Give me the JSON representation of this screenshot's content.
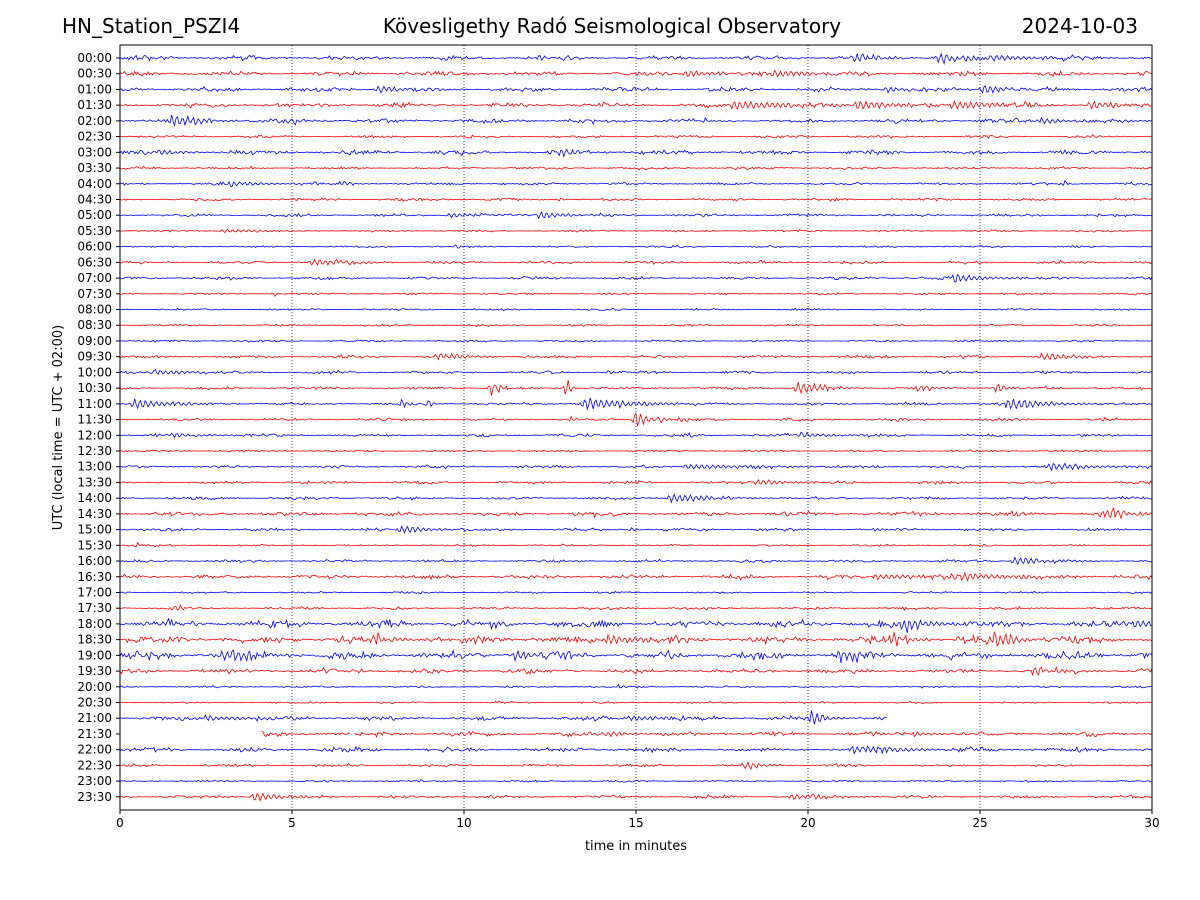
{
  "header": {
    "station": "HN_Station_PSZI4",
    "observatory": "Kövesligethy Radó Seismological Observatory",
    "date": "2024-10-03"
  },
  "chart_data": {
    "type": "line",
    "xlabel": "time in minutes",
    "ylabel": "UTC (local time = UTC + 02:00)",
    "xlim": [
      0,
      30
    ],
    "xticks": [
      0,
      5,
      10,
      15,
      20,
      25,
      30
    ],
    "grid": "vertical dotted lines at 5-minute intervals",
    "row_labels": [
      "00:00",
      "00:30",
      "01:00",
      "01:30",
      "02:00",
      "02:30",
      "03:00",
      "03:30",
      "04:00",
      "04:30",
      "05:00",
      "05:30",
      "06:00",
      "06:30",
      "07:00",
      "07:30",
      "08:00",
      "08:30",
      "09:00",
      "09:30",
      "10:00",
      "10:30",
      "11:00",
      "11:30",
      "12:00",
      "12:30",
      "13:00",
      "13:30",
      "14:00",
      "14:30",
      "15:00",
      "15:30",
      "16:00",
      "16:30",
      "17:00",
      "17:30",
      "18:00",
      "18:30",
      "19:00",
      "19:30",
      "20:00",
      "20:30",
      "21:00",
      "21:30",
      "22:00",
      "22:30",
      "23:00",
      "23:30"
    ],
    "row_colors": [
      "#0000ff",
      "#ff0000"
    ],
    "noise_level": {
      "quiet": 0.15,
      "moderate": 0.35,
      "high": 0.6,
      "quiet_rows": [
        "05:30",
        "06:00",
        "07:30",
        "08:00",
        "08:30",
        "09:00",
        "12:30",
        "15:30",
        "17:00",
        "20:00",
        "20:30",
        "23:00"
      ],
      "moderate_rows": [
        "00:00",
        "00:30",
        "01:00",
        "01:30",
        "02:00",
        "03:00",
        "14:30",
        "16:30",
        "19:30",
        "21:00",
        "21:30",
        "22:00"
      ],
      "high_rows": [
        "18:00",
        "18:30",
        "19:00"
      ]
    },
    "data_gaps": [
      {
        "row": "21:00",
        "from": 22.3,
        "to": 30
      },
      {
        "row": "21:30",
        "from": 0,
        "to": 4.1
      },
      {
        "row": "21:30",
        "from": 6.7,
        "to": 6.8
      }
    ],
    "events": [
      {
        "row": "00:00",
        "t": 21.3,
        "amp": 0.6,
        "dur": 0.8
      },
      {
        "row": "00:00",
        "t": 23.8,
        "amp": 0.7,
        "dur": 1.2
      },
      {
        "row": "00:00",
        "t": 25.3,
        "amp": 0.5,
        "dur": 1.5
      },
      {
        "row": "00:30",
        "t": 16.5,
        "amp": 0.5,
        "dur": 1.0
      },
      {
        "row": "00:30",
        "t": 19.0,
        "amp": 0.6,
        "dur": 1.2
      },
      {
        "row": "01:00",
        "t": 7.5,
        "amp": 0.6,
        "dur": 0.6
      },
      {
        "row": "01:00",
        "t": 22.3,
        "amp": 0.5,
        "dur": 0.6
      },
      {
        "row": "01:00",
        "t": 25.1,
        "amp": 0.8,
        "dur": 0.5
      },
      {
        "row": "01:30",
        "t": 17.8,
        "amp": 0.7,
        "dur": 2.0
      },
      {
        "row": "01:30",
        "t": 21.4,
        "amp": 0.8,
        "dur": 1.2
      },
      {
        "row": "01:30",
        "t": 24.2,
        "amp": 0.7,
        "dur": 1.2
      },
      {
        "row": "01:30",
        "t": 28.2,
        "amp": 0.7,
        "dur": 0.8
      },
      {
        "row": "02:00",
        "t": 1.5,
        "amp": 0.8,
        "dur": 0.8
      },
      {
        "row": "02:00",
        "t": 5.1,
        "amp": 0.4,
        "dur": 0.5
      },
      {
        "row": "02:00",
        "t": 26.8,
        "amp": 0.5,
        "dur": 0.6
      },
      {
        "row": "03:00",
        "t": 0.8,
        "amp": 0.5,
        "dur": 0.8
      },
      {
        "row": "03:00",
        "t": 12.8,
        "amp": 0.6,
        "dur": 0.6
      },
      {
        "row": "04:00",
        "t": 3.2,
        "amp": 0.4,
        "dur": 1.2
      },
      {
        "row": "04:00",
        "t": 6.5,
        "amp": 0.4,
        "dur": 0.3
      },
      {
        "row": "04:00",
        "t": 27.5,
        "amp": 0.5,
        "dur": 0.1
      },
      {
        "row": "04:30",
        "t": 12.8,
        "amp": 0.3,
        "dur": 0.1
      },
      {
        "row": "05:00",
        "t": 9.6,
        "amp": 0.4,
        "dur": 0.6
      },
      {
        "row": "05:00",
        "t": 12.2,
        "amp": 0.6,
        "dur": 0.8
      },
      {
        "row": "05:30",
        "t": 3.0,
        "amp": 0.3,
        "dur": 1.0
      },
      {
        "row": "06:00",
        "t": 9.8,
        "amp": 0.4,
        "dur": 0.1
      },
      {
        "row": "06:30",
        "t": 5.6,
        "amp": 0.6,
        "dur": 1.0
      },
      {
        "row": "07:00",
        "t": 3.2,
        "amp": 0.4,
        "dur": 0.3
      },
      {
        "row": "07:00",
        "t": 24.3,
        "amp": 0.7,
        "dur": 0.8
      },
      {
        "row": "07:30",
        "t": 4.5,
        "amp": 0.4,
        "dur": 0.1
      },
      {
        "row": "09:30",
        "t": 9.2,
        "amp": 0.5,
        "dur": 0.8
      },
      {
        "row": "09:30",
        "t": 26.8,
        "amp": 0.6,
        "dur": 0.8
      },
      {
        "row": "10:00",
        "t": 1.0,
        "amp": 0.4,
        "dur": 1.2
      },
      {
        "row": "10:00",
        "t": 14.2,
        "amp": 0.4,
        "dur": 0.2
      },
      {
        "row": "10:30",
        "t": 10.8,
        "amp": 1.1,
        "dur": 0.1
      },
      {
        "row": "10:30",
        "t": 11.0,
        "amp": 0.9,
        "dur": 0.1
      },
      {
        "row": "10:30",
        "t": 13.0,
        "amp": 1.8,
        "dur": 0.1
      },
      {
        "row": "10:30",
        "t": 19.7,
        "amp": 1.0,
        "dur": 0.7
      },
      {
        "row": "10:30",
        "t": 23.2,
        "amp": 0.6,
        "dur": 0.3
      },
      {
        "row": "10:30",
        "t": 25.5,
        "amp": 0.9,
        "dur": 0.2
      },
      {
        "row": "11:00",
        "t": 0.4,
        "amp": 0.8,
        "dur": 1.0
      },
      {
        "row": "11:00",
        "t": 8.2,
        "amp": 0.6,
        "dur": 0.2
      },
      {
        "row": "11:00",
        "t": 9.0,
        "amp": 0.7,
        "dur": 0.1
      },
      {
        "row": "11:00",
        "t": 13.5,
        "amp": 0.9,
        "dur": 1.5
      },
      {
        "row": "11:00",
        "t": 25.8,
        "amp": 0.8,
        "dur": 1.2
      },
      {
        "row": "11:30",
        "t": 13.1,
        "amp": 0.4,
        "dur": 0.2
      },
      {
        "row": "11:30",
        "t": 15.0,
        "amp": 1.5,
        "dur": 0.3
      },
      {
        "row": "11:30",
        "t": 15.7,
        "amp": 0.6,
        "dur": 0.2
      },
      {
        "row": "11:30",
        "t": 16.3,
        "amp": 0.5,
        "dur": 0.2
      },
      {
        "row": "12:00",
        "t": 1.5,
        "amp": 0.4,
        "dur": 0.8
      },
      {
        "row": "12:00",
        "t": 16.6,
        "amp": 0.4,
        "dur": 0.1
      },
      {
        "row": "12:00",
        "t": 19.8,
        "amp": 0.4,
        "dur": 0.8
      },
      {
        "row": "13:00",
        "t": 16.5,
        "amp": 0.4,
        "dur": 2.0
      },
      {
        "row": "13:00",
        "t": 18.5,
        "amp": 0.4,
        "dur": 1.2
      },
      {
        "row": "13:00",
        "t": 27.0,
        "amp": 0.5,
        "dur": 1.5
      },
      {
        "row": "13:30",
        "t": 18.5,
        "amp": 0.5,
        "dur": 0.8
      },
      {
        "row": "14:00",
        "t": 16.0,
        "amp": 0.7,
        "dur": 1.2
      },
      {
        "row": "14:30",
        "t": 28.6,
        "amp": 0.8,
        "dur": 0.8
      },
      {
        "row": "15:00",
        "t": 8.2,
        "amp": 0.6,
        "dur": 0.8
      },
      {
        "row": "15:00",
        "t": 14.9,
        "amp": 0.4,
        "dur": 0.1
      },
      {
        "row": "15:30",
        "t": 0.5,
        "amp": 0.5,
        "dur": 0.1
      },
      {
        "row": "16:00",
        "t": 26.0,
        "amp": 0.6,
        "dur": 1.2
      },
      {
        "row": "16:30",
        "t": 22.0,
        "amp": 0.5,
        "dur": 1.0
      },
      {
        "row": "16:30",
        "t": 24.5,
        "amp": 0.5,
        "dur": 2.0
      },
      {
        "row": "17:30",
        "t": 1.6,
        "amp": 0.5,
        "dur": 0.2
      },
      {
        "row": "18:00",
        "t": 22.7,
        "amp": 1.0,
        "dur": 1.0
      },
      {
        "row": "18:00",
        "t": 29.5,
        "amp": 0.8,
        "dur": 0.6
      },
      {
        "row": "18:30",
        "t": 7.5,
        "amp": 0.7,
        "dur": 0.6
      },
      {
        "row": "18:30",
        "t": 14.2,
        "amp": 0.8,
        "dur": 0.8
      },
      {
        "row": "18:30",
        "t": 22.4,
        "amp": 1.0,
        "dur": 0.6
      },
      {
        "row": "18:30",
        "t": 25.4,
        "amp": 1.2,
        "dur": 0.6
      },
      {
        "row": "19:00",
        "t": 3.0,
        "amp": 0.8,
        "dur": 1.0
      },
      {
        "row": "19:00",
        "t": 11.5,
        "amp": 0.7,
        "dur": 0.6
      },
      {
        "row": "19:00",
        "t": 12.7,
        "amp": 0.8,
        "dur": 0.5
      },
      {
        "row": "19:00",
        "t": 20.9,
        "amp": 1.1,
        "dur": 0.6
      },
      {
        "row": "19:30",
        "t": 7.0,
        "amp": 0.4,
        "dur": 0.1
      },
      {
        "row": "19:30",
        "t": 26.6,
        "amp": 0.6,
        "dur": 0.8
      },
      {
        "row": "20:00",
        "t": 14.5,
        "amp": 0.3,
        "dur": 0.4
      },
      {
        "row": "21:00",
        "t": 2.5,
        "amp": 0.4,
        "dur": 1.5
      },
      {
        "row": "21:00",
        "t": 14.8,
        "amp": 0.5,
        "dur": 0.8
      },
      {
        "row": "21:00",
        "t": 20.1,
        "amp": 1.1,
        "dur": 0.4
      },
      {
        "row": "21:30",
        "t": 14.2,
        "amp": 0.4,
        "dur": 0.6
      },
      {
        "row": "21:30",
        "t": 23.1,
        "amp": 0.4,
        "dur": 0.5
      },
      {
        "row": "22:00",
        "t": 21.3,
        "amp": 0.6,
        "dur": 1.5
      },
      {
        "row": "22:30",
        "t": 18.2,
        "amp": 0.5,
        "dur": 0.6
      },
      {
        "row": "23:30",
        "t": 3.9,
        "amp": 0.7,
        "dur": 1.0
      },
      {
        "row": "23:30",
        "t": 19.5,
        "amp": 0.5,
        "dur": 1.0
      }
    ]
  }
}
